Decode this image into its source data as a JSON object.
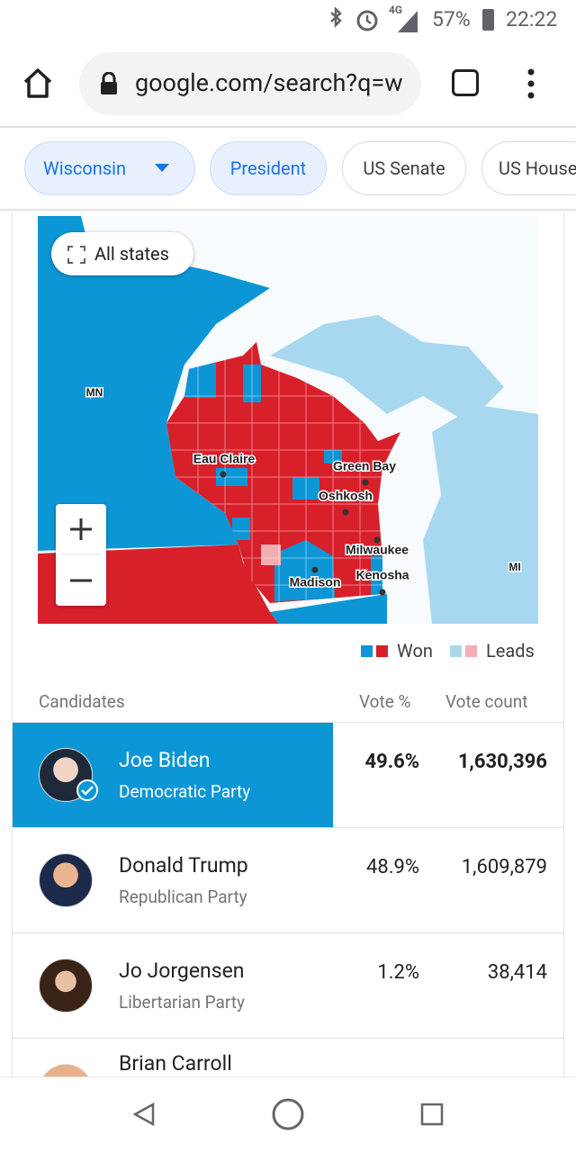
{
  "status_bar": {
    "network": "4G",
    "battery": "57%",
    "time": "22:22"
  },
  "browser": {
    "url": "google.com/search?q=w"
  },
  "chips": [
    "Wisconsin",
    "President",
    "US Senate",
    "US House"
  ],
  "map": {
    "button": "All states",
    "state_labels": [
      "MN",
      "MI"
    ],
    "cities": [
      "Eau Claire",
      "Green Bay",
      "Oshkosh",
      "Milwaukee",
      "Madison",
      "Kenosha"
    ]
  },
  "legend": [
    "Won",
    "Leads"
  ],
  "table": {
    "headers": [
      "Candidates",
      "Vote %",
      "Vote count"
    ],
    "rows": [
      {
        "name": "Joe Biden",
        "party": "Democratic Party",
        "vote_pct": "49.6%",
        "vote_count": "1,630,396"
      },
      {
        "name": "Donald Trump",
        "party": "Republican Party",
        "vote_pct": "48.9%",
        "vote_count": "1,609,879"
      },
      {
        "name": "Jo Jorgensen",
        "party": "Libertarian Party",
        "vote_pct": "1.2%",
        "vote_count": "38,414"
      },
      {
        "name": "Brian Carroll"
      }
    ]
  }
}
